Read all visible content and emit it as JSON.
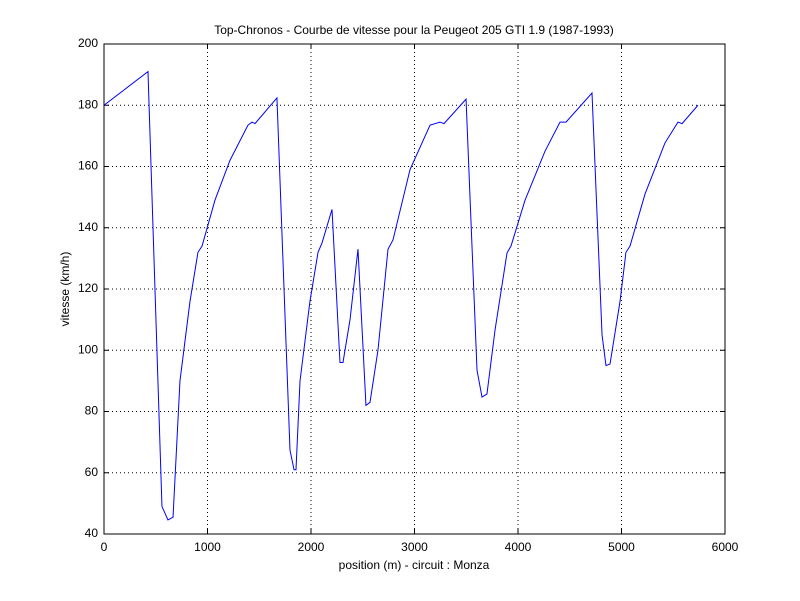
{
  "chart_data": {
    "type": "line",
    "title": "Top-Chronos - Courbe de vitesse pour la Peugeot 205 GTI 1.9 (1987-1993)",
    "x_label": "position (m) - circuit : Monza",
    "y_label": "vitesse (km/h)",
    "x": [
      0,
      425,
      560,
      618,
      667,
      734,
      831,
      908,
      947,
      1072,
      1217,
      1391,
      1430,
      1459,
      1671,
      1797,
      1836,
      1855,
      1894,
      1990,
      2068,
      2106,
      2203,
      2280,
      2309,
      2377,
      2454,
      2531,
      2570,
      2647,
      2744,
      2792,
      2957,
      3150,
      3246,
      3285,
      3498,
      3604,
      3652,
      3700,
      3778,
      3894,
      3932,
      4068,
      4261,
      4406,
      4464,
      4715,
      4812,
      4850,
      4889,
      4986,
      5043,
      5082,
      5227,
      5420,
      5546,
      5585,
      5739
    ],
    "series": [
      {
        "name": "vitesse",
        "color": "#0000ff",
        "values": [
          180,
          191,
          49,
          44.6,
          45.5,
          90,
          116,
          132,
          134,
          149,
          162,
          173.5,
          174.5,
          174,
          182.4,
          67.4,
          61,
          61,
          90,
          116,
          132,
          135,
          146,
          96,
          96,
          110,
          133,
          82,
          83,
          100,
          133,
          136,
          159,
          173.5,
          174.5,
          174,
          182,
          93.5,
          84.7,
          85.7,
          106.6,
          131.8,
          134,
          149,
          165,
          174.5,
          174.5,
          184,
          105,
          95,
          95.5,
          116,
          132,
          134,
          151,
          167.7,
          174.5,
          174,
          180
        ]
      }
    ],
    "xlim": [
      0,
      6000
    ],
    "xticks": [
      0,
      1000,
      2000,
      3000,
      4000,
      5000,
      6000
    ],
    "ylim": [
      40,
      200
    ],
    "yticks": [
      40,
      60,
      80,
      100,
      120,
      140,
      160,
      180,
      200
    ],
    "grid": true
  }
}
